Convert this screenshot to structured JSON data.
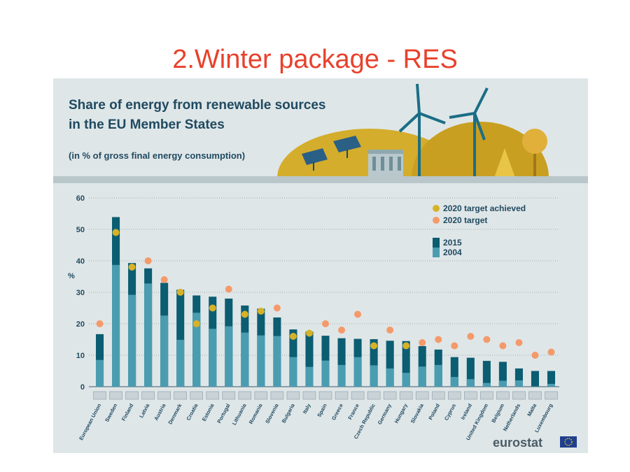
{
  "slide": {
    "title": "2.Winter package - RES"
  },
  "infographic": {
    "title_line1": "Share of energy from renewable sources",
    "title_line2": "in the EU Member States",
    "subtitle": "(in % of gross final energy consumption)",
    "brand": "eurostat"
  },
  "colors": {
    "bar_2015": "#0b5d72",
    "bar_2004": "#4a9db0",
    "target_achieved": "#d6b227",
    "target": "#f49a6a",
    "text": "#1f4a60",
    "panel": "#dfe6e8",
    "hill": "#d4ad2c"
  },
  "chart_data": {
    "type": "bar",
    "ylabel": "%",
    "ylim": [
      0,
      60
    ],
    "yticks": [
      0,
      10,
      20,
      30,
      40,
      50,
      60
    ],
    "legend": {
      "position": "top-right",
      "achieved": "2020 target achieved",
      "target": "2020 target",
      "y2015": "2015",
      "y2004": "2004"
    },
    "categories": [
      "European Union",
      "Sweden",
      "Finland",
      "Latvia",
      "Austria",
      "Denmark",
      "Croatia",
      "Estonia",
      "Portugal",
      "Lithuania",
      "Romania",
      "Slovenia",
      "Bulgaria",
      "Italy",
      "Spain",
      "Greece",
      "France",
      "Czech Republic",
      "Germany",
      "Hungary",
      "Slovakia",
      "Poland",
      "Cyprus",
      "Ireland",
      "United Kingdom",
      "Belgium",
      "Netherlands",
      "Malta",
      "Luxembourg"
    ],
    "series": [
      {
        "name": "2015",
        "values": [
          16.7,
          53.9,
          39.3,
          37.6,
          33.0,
          30.8,
          29.0,
          28.6,
          28.0,
          25.8,
          24.8,
          22.0,
          18.2,
          17.5,
          16.2,
          15.4,
          15.2,
          15.1,
          14.6,
          14.5,
          12.9,
          11.8,
          9.4,
          9.2,
          8.2,
          7.9,
          5.8,
          5.0,
          5.0
        ]
      },
      {
        "name": "2004",
        "values": [
          8.5,
          38.7,
          29.2,
          32.8,
          22.6,
          14.9,
          23.5,
          18.4,
          19.2,
          17.2,
          16.3,
          16.1,
          9.4,
          6.3,
          8.3,
          6.9,
          9.4,
          6.8,
          5.8,
          4.4,
          6.4,
          6.9,
          3.1,
          2.4,
          1.2,
          1.9,
          2.0,
          0.1,
          0.9
        ]
      }
    ],
    "target_2020": [
      20,
      49,
      38,
      40,
      34,
      30,
      20,
      25,
      31,
      23,
      24,
      25,
      16,
      17,
      20,
      18,
      23,
      13,
      18,
      13,
      14,
      15,
      13,
      16,
      15,
      13,
      14,
      10,
      11
    ],
    "target_achieved": [
      false,
      true,
      true,
      false,
      false,
      true,
      true,
      true,
      false,
      true,
      true,
      false,
      true,
      true,
      false,
      false,
      false,
      true,
      false,
      true,
      false,
      false,
      false,
      false,
      false,
      false,
      false,
      false,
      false
    ]
  }
}
